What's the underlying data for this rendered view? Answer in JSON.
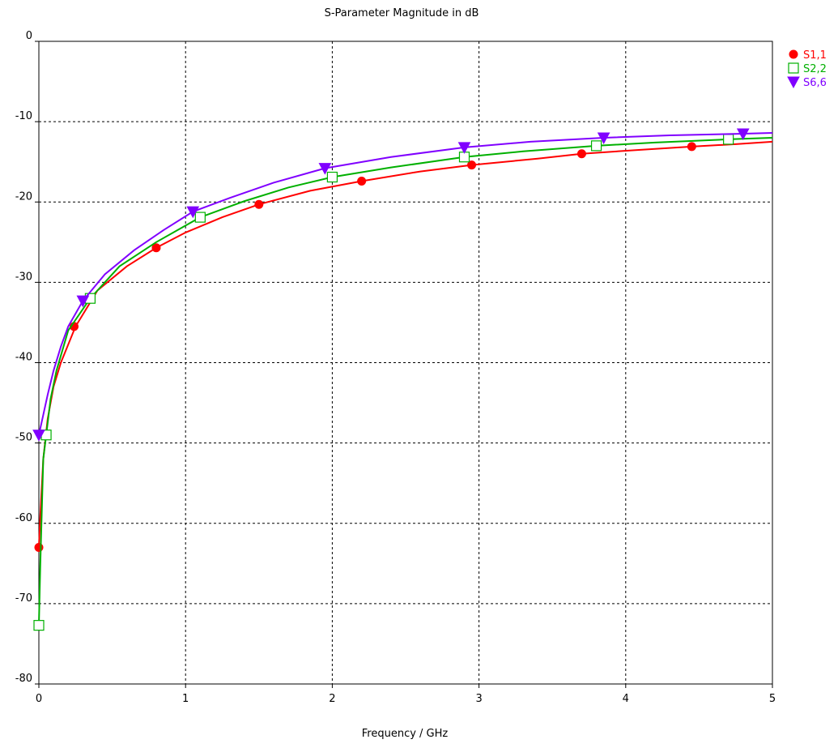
{
  "chart_data": {
    "type": "line",
    "title": "S-Parameter Magnitude in dB",
    "xlabel": "Frequency / GHz",
    "ylabel": "",
    "xlim": [
      0,
      5
    ],
    "ylim": [
      -80,
      0
    ],
    "xticks": [
      0,
      1,
      2,
      3,
      4,
      5
    ],
    "xtick_labels": [
      "0",
      "1",
      "2",
      "3",
      "4",
      "5"
    ],
    "yticks": [
      0,
      -10,
      -20,
      -30,
      -40,
      -50,
      -60,
      -70,
      -80
    ],
    "ytick_labels": [
      "0",
      "-10",
      "-20",
      "-30",
      "-40",
      "-50",
      "-60",
      "-70",
      "-80"
    ],
    "grid": true,
    "legend_position": "top-right",
    "series": [
      {
        "name": "S1,1",
        "color": "#ff0000",
        "marker": "filled-circle",
        "x": [
          0.0,
          0.01,
          0.03,
          0.06,
          0.1,
          0.15,
          0.25,
          0.4,
          0.6,
          0.8,
          1.0,
          1.25,
          1.5,
          1.85,
          2.2,
          2.6,
          2.95,
          3.4,
          3.7,
          4.1,
          4.45,
          4.75,
          5.0
        ],
        "y": [
          -63.0,
          -59.0,
          -52.0,
          -47.0,
          -43.0,
          -40.0,
          -35.5,
          -31.0,
          -28.0,
          -25.7,
          -23.8,
          -21.9,
          -20.3,
          -18.6,
          -17.4,
          -16.2,
          -15.4,
          -14.6,
          -14.0,
          -13.5,
          -13.1,
          -12.8,
          -12.5
        ],
        "marker_x": [
          0.0,
          0.24,
          0.8,
          1.5,
          2.2,
          2.95,
          3.7,
          4.45
        ],
        "marker_y": [
          -63.0,
          -35.5,
          -25.7,
          -20.3,
          -17.4,
          -15.4,
          -14.0,
          -13.1
        ]
      },
      {
        "name": "S2,2",
        "color": "#00b000",
        "marker": "open-square",
        "x": [
          0.0,
          0.01,
          0.03,
          0.05,
          0.08,
          0.12,
          0.2,
          0.35,
          0.55,
          0.8,
          1.1,
          1.4,
          1.7,
          2.0,
          2.4,
          2.9,
          3.3,
          3.8,
          4.2,
          4.7,
          5.0
        ],
        "y": [
          -72.7,
          -65.0,
          -52.0,
          -49.0,
          -44.5,
          -41.0,
          -36.0,
          -32.0,
          -28.0,
          -25.0,
          -21.9,
          -19.9,
          -18.2,
          -16.9,
          -15.7,
          -14.4,
          -13.7,
          -13.0,
          -12.6,
          -12.2,
          -12.0
        ],
        "marker_x": [
          0.0,
          0.05,
          0.35,
          1.1,
          2.0,
          2.9,
          3.8,
          4.7
        ],
        "marker_y": [
          -72.7,
          -49.0,
          -32.0,
          -21.9,
          -16.9,
          -14.4,
          -13.0,
          -12.2
        ]
      },
      {
        "name": "S6,6",
        "color": "#8000ff",
        "marker": "filled-triangle-down",
        "x": [
          0.0,
          0.03,
          0.06,
          0.1,
          0.15,
          0.2,
          0.3,
          0.45,
          0.65,
          0.85,
          1.05,
          1.3,
          1.6,
          1.95,
          2.4,
          2.9,
          3.35,
          3.85,
          4.3,
          4.8,
          5.0
        ],
        "y": [
          -49.0,
          -46.5,
          -44.0,
          -41.0,
          -38.0,
          -35.5,
          -32.3,
          -29.0,
          -26.0,
          -23.5,
          -21.2,
          -19.5,
          -17.6,
          -15.8,
          -14.4,
          -13.2,
          -12.5,
          -12.0,
          -11.7,
          -11.5,
          -11.4
        ],
        "marker_x": [
          0.0,
          0.3,
          1.05,
          1.95,
          2.9,
          3.85,
          4.8
        ],
        "marker_y": [
          -49.0,
          -32.3,
          -21.2,
          -15.8,
          -13.2,
          -12.0,
          -11.5
        ]
      }
    ]
  }
}
